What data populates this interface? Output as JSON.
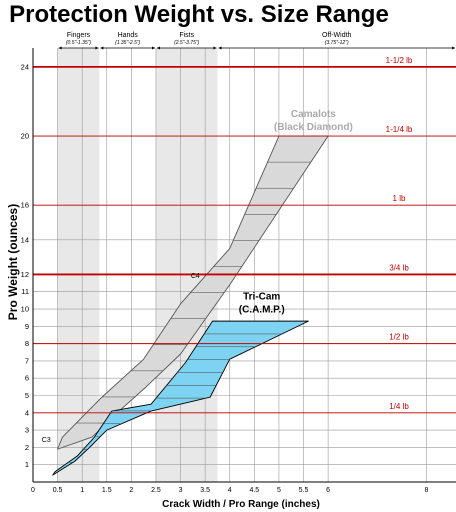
{
  "chart_data": {
    "type": "area",
    "title": "Protection Weight vs. Size Range",
    "xlabel": "Crack Width / Pro Range (inches)",
    "ylabel": "Pro Weight (ounces)",
    "xlim": [
      0,
      8.6
    ],
    "ylim": [
      0,
      24.8
    ],
    "x_ticks": [
      0,
      0.5,
      1,
      1.5,
      2,
      2.5,
      3,
      3.5,
      4,
      4.5,
      5,
      5.5,
      6,
      8
    ],
    "x_tick_labels": [
      "0",
      "0.5",
      "1",
      "1.5",
      "2",
      "2.5",
      "3",
      "3.5",
      "4",
      "4.5",
      "5",
      "5.5",
      "6",
      "8"
    ],
    "y_ticks": [
      1,
      2,
      3,
      4,
      5,
      6,
      7,
      8,
      9,
      10,
      11,
      12,
      14,
      16,
      20,
      24
    ],
    "y_tick_labels": [
      "1",
      "2",
      "3",
      "4",
      "5",
      "6",
      "7",
      "8",
      "9",
      "10",
      "11",
      "12",
      "14",
      "16",
      "20",
      "24"
    ],
    "grid": true,
    "size_bands": [
      {
        "name": "Fingers",
        "range_label": "(0.5\"-1.35\")",
        "from": 0.5,
        "to": 1.35,
        "shaded": true
      },
      {
        "name": "Hands",
        "range_label": "(1.35\"-2.5\")",
        "from": 1.35,
        "to": 2.5,
        "shaded": false
      },
      {
        "name": "Fists",
        "range_label": "(2.5\"-3.75\")",
        "from": 2.5,
        "to": 3.75,
        "shaded": true
      },
      {
        "name": "Off-Width",
        "range_label": "(3.75\"-12\")",
        "from": 3.75,
        "to": 8.6,
        "shaded": false
      }
    ],
    "reference_lines": [
      {
        "y": 24,
        "label": "1-1/2 lb",
        "style": "thick"
      },
      {
        "y": 20,
        "label": "1-1/4 lb",
        "style": "thin"
      },
      {
        "y": 16,
        "label": "1 lb",
        "style": "thin"
      },
      {
        "y": 12,
        "label": "3/4 lb",
        "style": "thick"
      },
      {
        "y": 8,
        "label": "1/2 lb",
        "style": "thin"
      },
      {
        "y": 4,
        "label": "1/4 lb",
        "style": "thin"
      }
    ],
    "series": [
      {
        "name": "Camalots\n(Black Diamond)",
        "color": "#d9d9d9",
        "stroke": "#555555",
        "lower_x": [
          0.5,
          1.2,
          1.75,
          2.3,
          3.0,
          4.0,
          6.0
        ],
        "lower_y": [
          1.9,
          2.6,
          4.1,
          5.5,
          7.4,
          11.4,
          20.0
        ],
        "upper_x": [
          0.6,
          1.4,
          2.25,
          3.0,
          4.0,
          5.0,
          6.0
        ],
        "upper_y": [
          2.6,
          4.9,
          7.1,
          10.3,
          13.5,
          20.0,
          20.0
        ],
        "labels": [
          {
            "text": "Camalots",
            "x": 5.7,
            "y": 21.1
          },
          {
            "text": "(Black Diamond)",
            "x": 5.7,
            "y": 20.35
          },
          {
            "text": "C4",
            "x": 3.3,
            "y": 11.8
          },
          {
            "text": "C3",
            "x": 0.27,
            "y": 2.3
          }
        ]
      },
      {
        "name": "Tri-Cam\n(C.A.M.P.)",
        "color": "#7fd3f2",
        "stroke": "#000000",
        "lower_x": [
          0.4,
          0.85,
          1.15,
          1.5,
          2.4,
          3.6,
          4.0,
          5.6
        ],
        "lower_y": [
          0.4,
          1.2,
          2.0,
          3.0,
          4.1,
          4.9,
          7.1,
          9.3
        ],
        "upper_x": [
          0.45,
          0.9,
          1.25,
          1.6,
          2.4,
          3.1,
          3.65,
          5.6
        ],
        "upper_y": [
          0.6,
          1.5,
          2.6,
          4.1,
          4.5,
          6.9,
          9.3,
          9.3
        ],
        "labels": [
          {
            "text": "Tri-Cam",
            "x": 4.65,
            "y": 10.55
          },
          {
            "text": "(C.A.M.P.)",
            "x": 4.65,
            "y": 9.8
          }
        ]
      }
    ]
  }
}
